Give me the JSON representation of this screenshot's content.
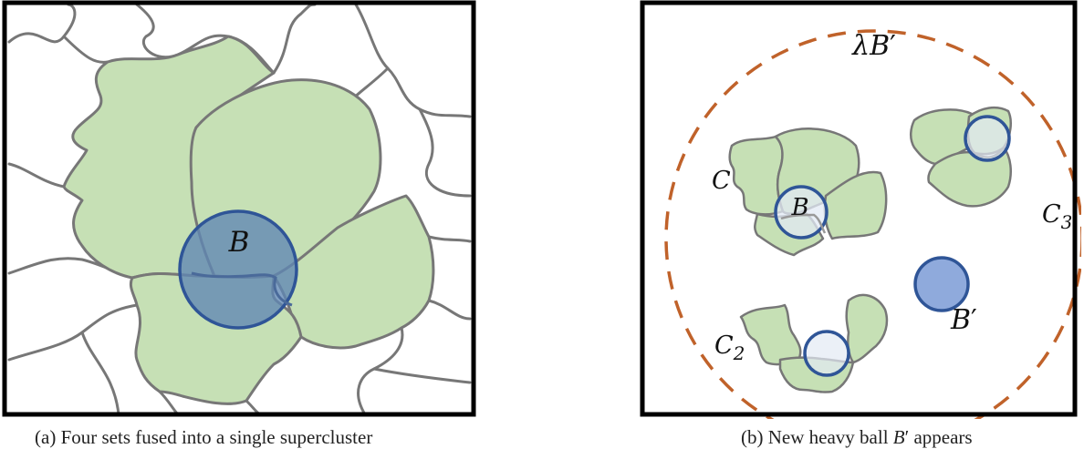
{
  "panel_a": {
    "ball_label": "B",
    "caption_prefix": "(a)",
    "caption_text": "Four sets fused into a single supercluster",
    "colors": {
      "cluster_fill": "#c6e0b5",
      "boundary": "#777777",
      "ball": "#5f86b4",
      "ball_stroke": "#2f5597"
    }
  },
  "panel_b": {
    "big_ball_label_base": "λB",
    "big_ball_label_prime": "′",
    "cluster_c_label": "C",
    "cluster_c2_base": "C",
    "cluster_c2_sub": "2",
    "cluster_c3_base": "C",
    "cluster_c3_sub": "3",
    "ball_b_label": "B",
    "heavy_ball_base": "B",
    "heavy_ball_prime": "′",
    "caption_prefix": "(b)",
    "caption_text_1": "New heavy ball",
    "caption_math_base": "B",
    "caption_math_prime": "′",
    "caption_text_2": "appears",
    "colors": {
      "dashed_circle": "#c0622a",
      "heavy_ball": "#8faadc",
      "small_ball": "#e2e9f4"
    }
  }
}
